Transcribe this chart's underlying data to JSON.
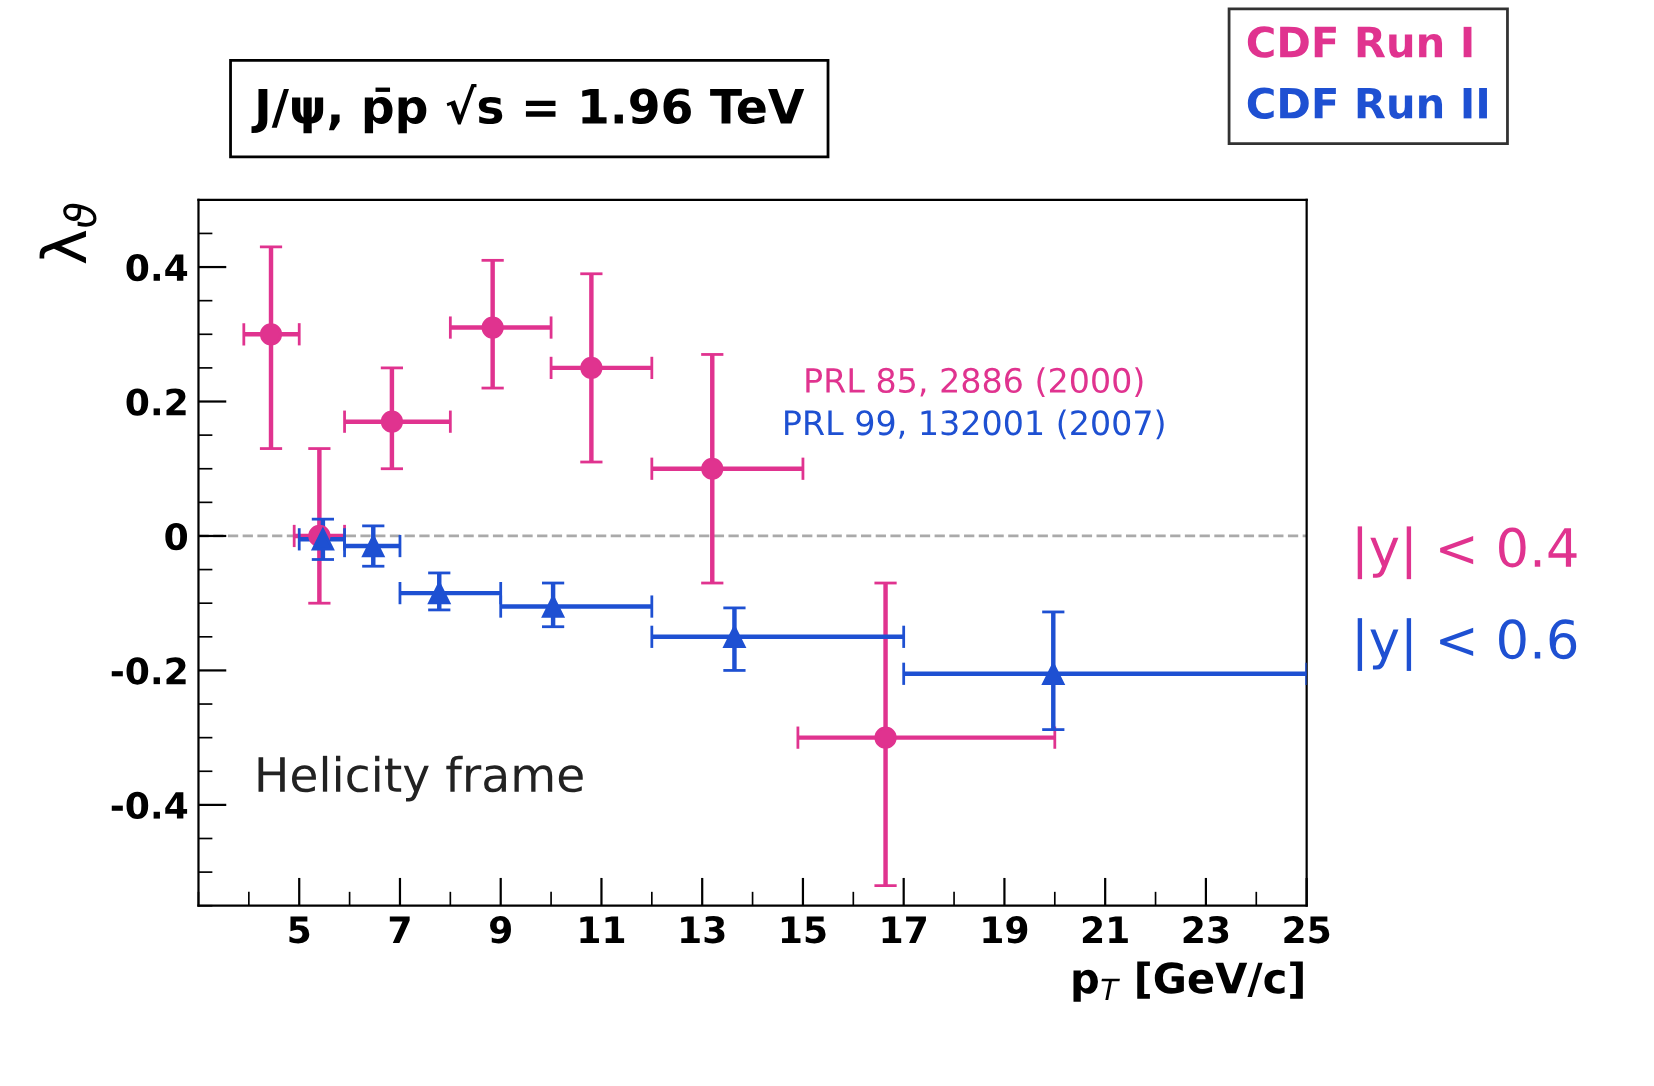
{
  "chart_data": {
    "type": "scatter",
    "title": "J/ψ, p̄p √s = 1.96 TeV",
    "xlabel": "p$_{T}$ [GeV/c]",
    "ylabel": "λ$_{ϑ}$",
    "xlim": [
      3,
      25
    ],
    "xticks": [
      5,
      7,
      9,
      11,
      13,
      15,
      17,
      19,
      21,
      23,
      25
    ],
    "ylim": [
      -0.55,
      0.5
    ],
    "yticks": [
      {
        "value": -0.4,
        "label": "-0.4"
      },
      {
        "value": -0.2,
        "label": "-0.2"
      },
      0,
      0.2,
      0.4
    ],
    "grid": false,
    "legend": "top right",
    "series": [
      {
        "name": "CDF Run I",
        "color": "#e0338f",
        "marker": "circle",
        "x": [
          4.44,
          5.4,
          6.84,
          8.84,
          10.8,
          13.2,
          16.64
        ],
        "values": [
          0.3,
          0.0,
          0.17,
          0.31,
          0.25,
          0.1,
          -0.3
        ],
        "errors": [
          [
            0.13,
            0.43
          ],
          [
            -0.1,
            0.13
          ],
          [
            0.1,
            0.25
          ],
          [
            0.22,
            0.41
          ],
          [
            0.11,
            0.39
          ],
          [
            -0.07,
            0.27
          ],
          [
            -0.52,
            -0.07
          ]
        ],
        "xerrors": [
          [
            3.9,
            5.0
          ],
          [
            4.9,
            5.9
          ],
          [
            5.9,
            8.0
          ],
          [
            8.0,
            10.0
          ],
          [
            10.0,
            12.0
          ],
          [
            12.0,
            15.0
          ],
          [
            14.9,
            20.0
          ]
        ]
      },
      {
        "name": "CDF Run II",
        "color": "#1e50d2",
        "marker": "triangle",
        "x": [
          5.47,
          6.47,
          7.78,
          10.04,
          13.64,
          19.97
        ],
        "values": [
          -0.005,
          -0.015,
          -0.085,
          -0.105,
          -0.15,
          -0.205
        ],
        "errors": [
          [
            -0.035,
            0.025
          ],
          [
            -0.045,
            0.015
          ],
          [
            -0.11,
            -0.055
          ],
          [
            -0.135,
            -0.07
          ],
          [
            -0.2,
            -0.107
          ],
          [
            -0.288,
            -0.113
          ]
        ],
        "xerrors": [
          [
            5.0,
            5.9
          ],
          [
            5.9,
            7.0
          ],
          [
            7.0,
            9.0
          ],
          [
            9.0,
            12.0
          ],
          [
            12.0,
            17.0
          ],
          [
            17.0,
            25.0
          ]
        ]
      }
    ],
    "ref_lines": [
      {
        "axis": "y",
        "value": 0,
        "color": "#aaaaaa",
        "line_style": "dashed"
      }
    ],
    "annotations": [
      "PRL 85, 2886 (2000)",
      "PRL 99, 132001 (2007)",
      "|y| < 0.4",
      "|y| < 0.6",
      "Helicity frame"
    ]
  }
}
